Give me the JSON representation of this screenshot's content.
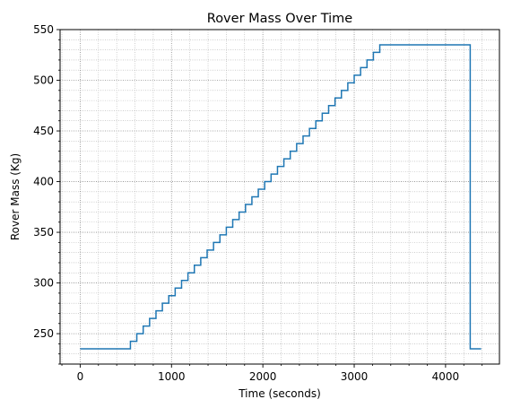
{
  "chart_data": {
    "type": "line",
    "title": "Rover Mass Over Time",
    "xlabel": "Time (seconds)",
    "ylabel": "Rover Mass (Kg)",
    "xlim": [
      -220,
      4590
    ],
    "ylim": [
      220,
      550
    ],
    "x_ticks": [
      0,
      1000,
      2000,
      3000,
      4000
    ],
    "y_ticks": [
      250,
      300,
      350,
      400,
      450,
      500,
      550
    ],
    "x_minor_step": 200,
    "y_minor_step": 10,
    "grid": "on (major and minor, dotted)",
    "line_style": "steps-post",
    "line_color": "#1f77b4",
    "series": [
      {
        "x": [
          0,
          550,
          620,
          690,
          760,
          830,
          900,
          970,
          1040,
          1110,
          1180,
          1250,
          1320,
          1390,
          1460,
          1530,
          1600,
          1670,
          1740,
          1810,
          1880,
          1950,
          2020,
          2090,
          2160,
          2230,
          2300,
          2370,
          2440,
          2510,
          2580,
          2650,
          2720,
          2790,
          2860,
          2930,
          3000,
          3070,
          3140,
          3210,
          3280,
          3350,
          3420,
          3490,
          3560,
          3630,
          3700,
          3770,
          4270,
          4330,
          4390
        ],
        "y": [
          235,
          242.5,
          250,
          257.5,
          265,
          272.5,
          280,
          287.5,
          295,
          302.5,
          310,
          317.5,
          325,
          332.5,
          340,
          347.5,
          355,
          362.5,
          370,
          377.5,
          385,
          392.5,
          400,
          407.5,
          415,
          422.5,
          430,
          437.5,
          445,
          452.5,
          460,
          467.5,
          475,
          482.5,
          490,
          497.5,
          505,
          512.5,
          520,
          527.5,
          535,
          535,
          535,
          535,
          535,
          535,
          535,
          535,
          235,
          235,
          235
        ]
      }
    ]
  }
}
